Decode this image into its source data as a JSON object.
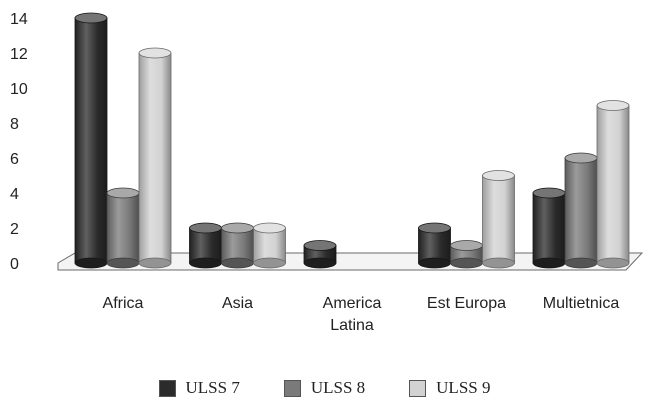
{
  "chart_data": {
    "type": "bar",
    "title": "",
    "xlabel": "",
    "ylabel": "",
    "ylim": [
      0,
      14
    ],
    "yticks": [
      0,
      2,
      4,
      6,
      8,
      10,
      12,
      14
    ],
    "grid": false,
    "style": "3d-cylinder",
    "legend_position": "bottom",
    "categories": [
      "Africa",
      "Asia",
      "America Latina",
      "Est Europa",
      "Multietnica"
    ],
    "series": [
      {
        "name": "ULSS 7",
        "color": "#2b2b2b",
        "values": [
          14,
          2,
          1,
          2,
          4
        ]
      },
      {
        "name": "ULSS 8",
        "color": "#7a7a7a",
        "values": [
          4,
          2,
          0,
          1,
          6
        ]
      },
      {
        "name": "ULSS 9",
        "color": "#d2d2d2",
        "values": [
          12,
          2,
          0,
          5,
          9
        ]
      }
    ]
  }
}
